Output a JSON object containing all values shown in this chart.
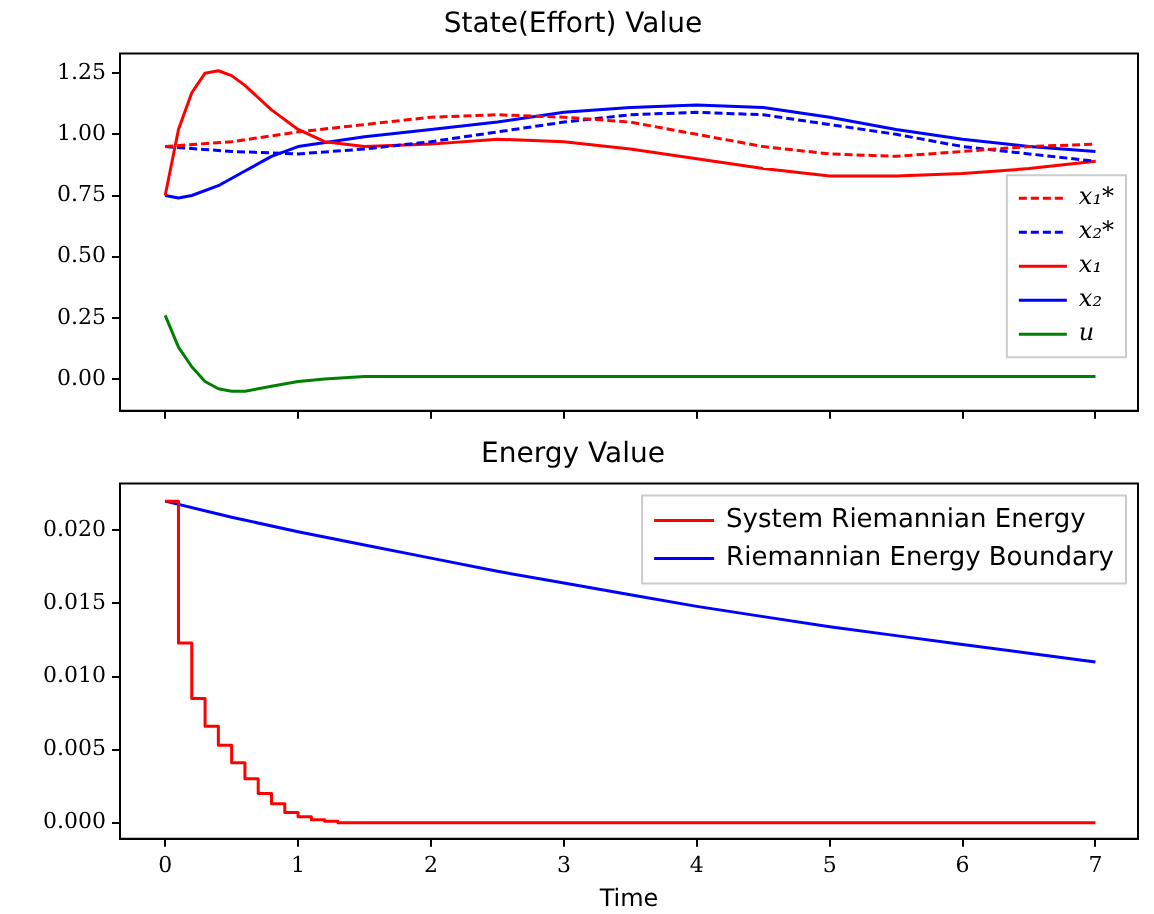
{
  "chart_data": [
    {
      "type": "line",
      "title": "State(Effort) Value",
      "xlim": [
        -0.34,
        7.32
      ],
      "xticks": [
        0,
        1,
        2,
        3,
        4,
        5,
        6,
        7
      ],
      "ylim": [
        -0.13,
        1.33
      ],
      "yticks": [
        {
          "value": 0,
          "label": "0.00"
        },
        0.25,
        {
          "value": 0.5,
          "label": "0.50"
        },
        0.75,
        {
          "value": 1,
          "label": "1.00"
        },
        1.25
      ],
      "tick_labels": "y",
      "grid": false,
      "legend": "center right",
      "marker": "none",
      "series": [
        {
          "name": "x₁*",
          "color": "#ff0000",
          "line_style": "dashed",
          "x": [
            0,
            0.5,
            1,
            1.5,
            2,
            2.5,
            3,
            3.5,
            4,
            4.5,
            5,
            5.5,
            6,
            6.5,
            7
          ],
          "values": [
            0.95,
            0.97,
            1.01,
            1.04,
            1.07,
            1.08,
            1.07,
            1.05,
            1.0,
            0.95,
            0.92,
            0.91,
            0.93,
            0.95,
            0.96
          ]
        },
        {
          "name": "x₂*",
          "color": "#0000ff",
          "line_style": "dashed",
          "x": [
            0,
            0.5,
            1,
            1.5,
            2,
            2.5,
            3,
            3.5,
            4,
            4.5,
            5,
            5.5,
            6,
            6.5,
            7
          ],
          "values": [
            0.95,
            0.93,
            0.92,
            0.94,
            0.97,
            1.01,
            1.05,
            1.08,
            1.09,
            1.08,
            1.04,
            1.0,
            0.95,
            0.92,
            0.89
          ]
        },
        {
          "name": "x₁",
          "color": "#ff0000",
          "line_style": "solid",
          "x": [
            0,
            0.1,
            0.2,
            0.3,
            0.4,
            0.5,
            0.6,
            0.8,
            1,
            1.2,
            1.5,
            2,
            2.5,
            3,
            3.5,
            4,
            4.5,
            5,
            5.5,
            6,
            6.5,
            7
          ],
          "values": [
            0.75,
            1.02,
            1.17,
            1.25,
            1.26,
            1.24,
            1.2,
            1.1,
            1.02,
            0.97,
            0.95,
            0.96,
            0.98,
            0.97,
            0.94,
            0.9,
            0.86,
            0.83,
            0.83,
            0.84,
            0.86,
            0.89
          ]
        },
        {
          "name": "x₂",
          "color": "#0000ff",
          "line_style": "solid",
          "x": [
            0,
            0.1,
            0.2,
            0.4,
            0.6,
            0.8,
            1,
            1.5,
            2,
            2.5,
            3,
            3.5,
            4,
            4.5,
            5,
            5.5,
            6,
            6.5,
            7
          ],
          "values": [
            0.75,
            0.74,
            0.75,
            0.79,
            0.85,
            0.91,
            0.95,
            0.99,
            1.02,
            1.05,
            1.09,
            1.11,
            1.12,
            1.11,
            1.07,
            1.02,
            0.98,
            0.95,
            0.93
          ]
        },
        {
          "name": "u",
          "color": "#008000",
          "line_style": "solid",
          "x": [
            0,
            0.1,
            0.2,
            0.3,
            0.4,
            0.5,
            0.6,
            0.8,
            1,
            1.2,
            1.5,
            2,
            7
          ],
          "values": [
            0.26,
            0.13,
            0.05,
            -0.01,
            -0.04,
            -0.05,
            -0.05,
            -0.03,
            -0.01,
            0,
            0.01,
            0.01,
            0.01
          ]
        }
      ]
    },
    {
      "type": "line",
      "title": "Energy Value",
      "xlabel": "Time",
      "xlim": [
        -0.34,
        7.32
      ],
      "xticks": [
        0,
        1,
        2,
        3,
        4,
        5,
        6,
        7
      ],
      "ylim": [
        -0.0011,
        0.0232
      ],
      "yticks": [
        {
          "value": 0,
          "label": "0.000"
        },
        {
          "value": 0.005,
          "label": "0.005"
        },
        {
          "value": 0.01,
          "label": "0.010"
        },
        {
          "value": 0.015,
          "label": "0.015"
        },
        {
          "value": 0.02,
          "label": "0.020"
        }
      ],
      "grid": false,
      "legend": "top right",
      "marker": "none",
      "series": [
        {
          "name": "System Riemannian Energy",
          "color": "#ff0000",
          "type": "step",
          "x": [
            0,
            0.1,
            0.2,
            0.3,
            0.4,
            0.5,
            0.6,
            0.7,
            0.8,
            0.9,
            1.0,
            1.1,
            1.2,
            1.3,
            7
          ],
          "values": [
            0.022,
            0.0123,
            0.0085,
            0.0066,
            0.0053,
            0.0041,
            0.003,
            0.002,
            0.0013,
            0.0007,
            0.0004,
            0.0002,
            0.0001,
            0,
            0
          ]
        },
        {
          "name": "Riemannian Energy Boundary",
          "color": "#0000ff",
          "type": "line",
          "x": [
            0,
            0.5,
            1,
            1.5,
            2,
            2.5,
            3,
            3.5,
            4,
            4.5,
            5,
            5.5,
            6,
            6.5,
            7
          ],
          "values": [
            0.022,
            0.0209,
            0.0199,
            0.019,
            0.0181,
            0.0172,
            0.0164,
            0.0156,
            0.0148,
            0.0141,
            0.0134,
            0.0128,
            0.0122,
            0.0116,
            0.011
          ]
        }
      ]
    }
  ]
}
